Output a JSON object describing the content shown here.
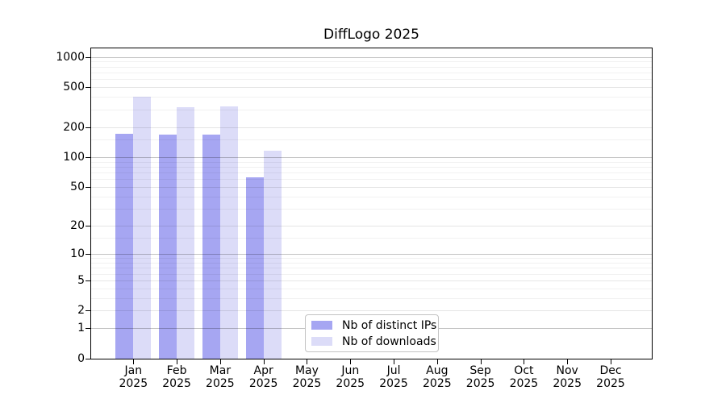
{
  "chart_data": {
    "type": "bar",
    "title": "DiffLogo 2025",
    "categories": [
      "Jan",
      "Feb",
      "Mar",
      "Apr",
      "May",
      "Jun",
      "Jul",
      "Aug",
      "Sep",
      "Oct",
      "Nov",
      "Dec"
    ],
    "year_label": "2025",
    "series": [
      {
        "name": "Nb of distinct IPs",
        "color": "#a6a6f2",
        "values": [
          172,
          168,
          168,
          63,
          0,
          0,
          0,
          0,
          0,
          0,
          0,
          0
        ]
      },
      {
        "name": "Nb of downloads",
        "color": "#dcdcf8",
        "values": [
          403,
          315,
          324,
          117,
          0,
          0,
          0,
          0,
          0,
          0,
          0,
          0
        ]
      }
    ],
    "yscale": "log10(1+x)",
    "ylim": [
      0,
      1220
    ],
    "yticks": [
      0,
      1,
      2,
      5,
      10,
      20,
      50,
      100,
      200,
      500,
      1000
    ],
    "minor_gridlines": [
      3,
      4,
      6,
      7,
      8,
      9,
      15,
      30,
      40,
      60,
      70,
      80,
      90,
      150,
      300,
      400,
      600,
      700,
      800,
      900
    ],
    "grid": "horizontal",
    "legend_position": "bottom-center-inside"
  }
}
